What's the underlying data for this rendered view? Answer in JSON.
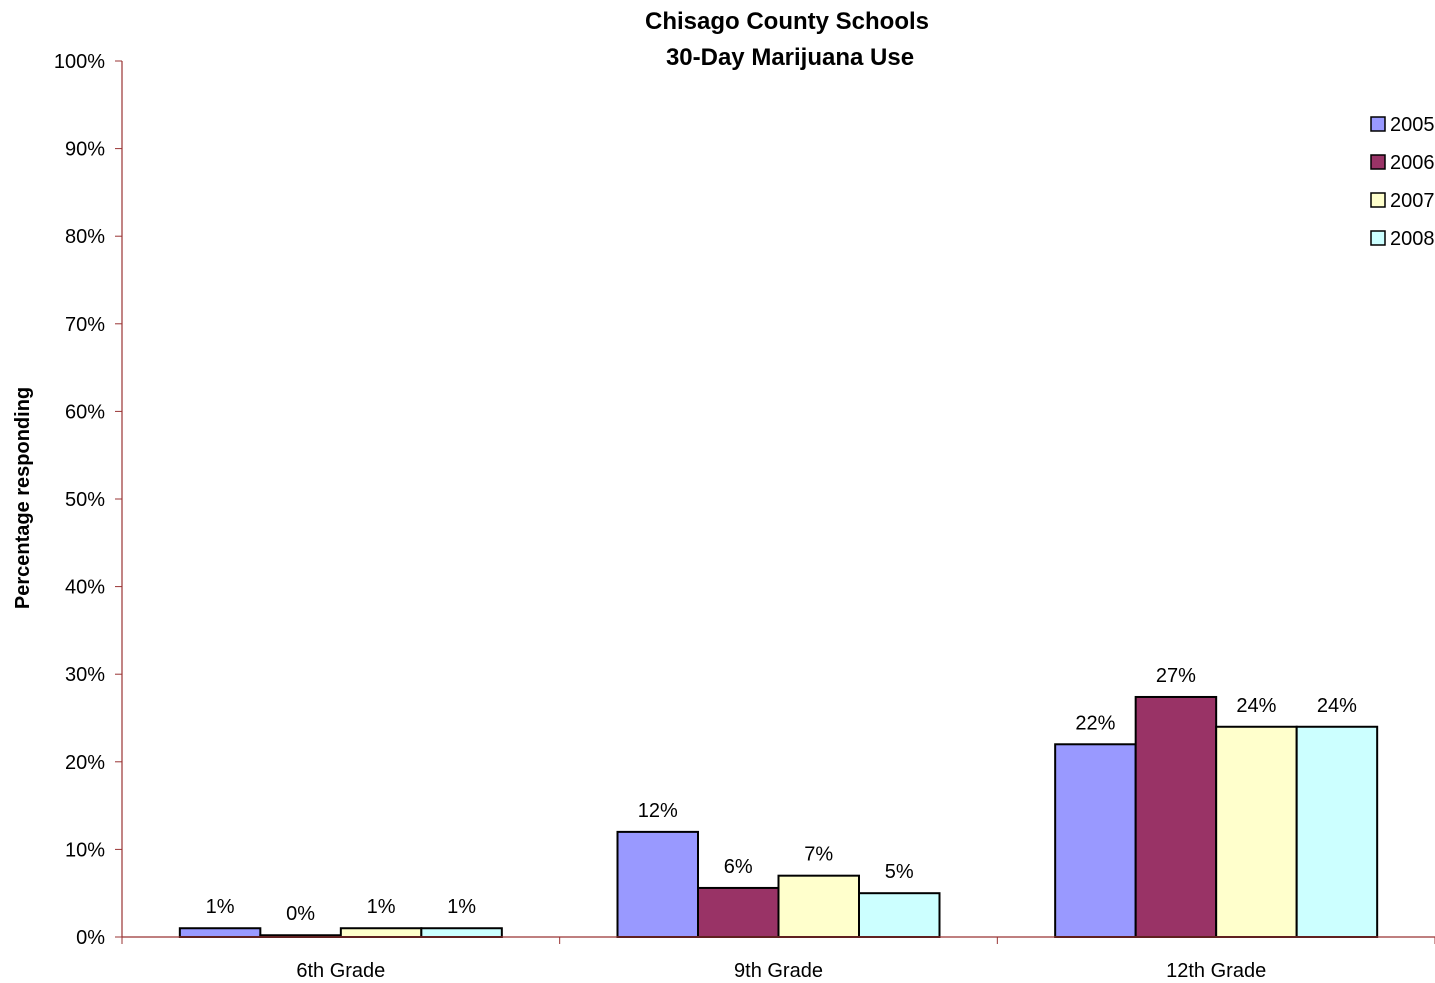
{
  "chart_data": {
    "type": "bar",
    "title": [
      "Chisago County Schools",
      "30-Day Marijuana Use"
    ],
    "ylabel": "Percentage responding",
    "xlabel": "",
    "ylim": [
      0,
      100
    ],
    "yticks": [
      "0%",
      "10%",
      "20%",
      "30%",
      "40%",
      "50%",
      "60%",
      "70%",
      "80%",
      "90%",
      "100%"
    ],
    "categories": [
      "6th Grade",
      "9th Grade",
      "12th Grade"
    ],
    "series": [
      {
        "name": "2005",
        "color": "#9999ff",
        "values": [
          1,
          12,
          22
        ],
        "labels": [
          "1%",
          "12%",
          "22%"
        ]
      },
      {
        "name": "2006",
        "color": "#993366",
        "values": [
          0.2,
          5.6,
          27.4
        ],
        "labels": [
          "0%",
          "6%",
          "27%"
        ]
      },
      {
        "name": "2007",
        "color": "#ffffcc",
        "values": [
          1,
          7,
          24
        ],
        "labels": [
          "1%",
          "7%",
          "24%"
        ]
      },
      {
        "name": "2008",
        "color": "#ccffff",
        "values": [
          1,
          5,
          24
        ],
        "labels": [
          "1%",
          "5%",
          "24%"
        ]
      }
    ],
    "legend": "top-right",
    "grid": false,
    "axis_color": "#993333"
  }
}
